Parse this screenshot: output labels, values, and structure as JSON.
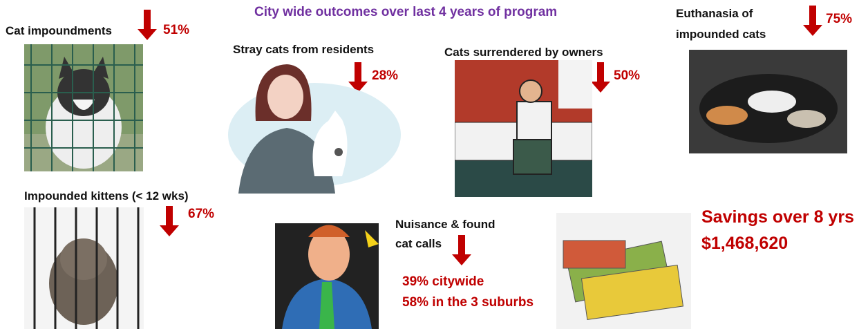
{
  "title": "City wide outcomes over last 4 years of program",
  "items": [
    {
      "label": "Cat impoundments",
      "change": "51%"
    },
    {
      "label": "Stray cats from residents",
      "change": "28%"
    },
    {
      "label": "Cats surrendered by owners",
      "change": "50%"
    },
    {
      "label_lines": [
        "Euthanasia of",
        "impounded cats"
      ],
      "change": "75%"
    },
    {
      "label": "Impounded kittens (< 12 wks)",
      "change": "67%"
    },
    {
      "label_lines": [
        "Nuisance & found",
        "cat calls"
      ],
      "changes": [
        "39% citywide",
        "58% in the 3 suburbs"
      ]
    }
  ],
  "savings": {
    "label": "Savings over 8 yrs",
    "amount": "$1,468,620"
  }
}
